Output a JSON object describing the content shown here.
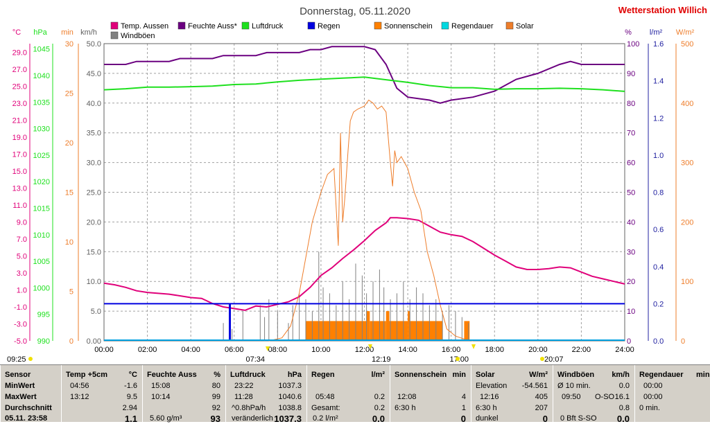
{
  "chart_data": {
    "type": "line",
    "title": "Donnerstag, 05.11.2020",
    "brand": "Wetterstation Willich",
    "legend": [
      {
        "label": "Temp. Aussen",
        "color": "#e0007a"
      },
      {
        "label": "Feuchte Auss*",
        "color": "#6b0080"
      },
      {
        "label": "Luftdruck",
        "color": "#1ee01e"
      },
      {
        "label": "Regen",
        "color": "#0000e0"
      },
      {
        "label": "Sonnenschein",
        "color": "#ff8000"
      },
      {
        "label": "Regendauer",
        "color": "#00d8e0"
      },
      {
        "label": "Solar",
        "color": "#ee7d2a"
      },
      {
        "label": "Windböen",
        "color": "#808080"
      }
    ],
    "axes": {
      "temp": {
        "unit": "°C",
        "color": "#e0007a",
        "min": -5,
        "max": 30,
        "ticks": [
          "29.0",
          "27.0",
          "25.0",
          "23.0",
          "21.0",
          "19.0",
          "17.0",
          "15.0",
          "13.0",
          "11.0",
          "9.0",
          "7.0",
          "5.0",
          "3.0",
          "1.0",
          "-1.0",
          "-3.0",
          "-5.0"
        ]
      },
      "hpa": {
        "unit": "hPa",
        "color": "#1ee01e",
        "min": 990,
        "max": 1046,
        "ticks": [
          "1045",
          "1040",
          "1035",
          "1030",
          "1025",
          "1020",
          "1015",
          "1010",
          "1005",
          "1000",
          "995",
          "990"
        ]
      },
      "min": {
        "unit": "min",
        "color": "#ee7d2a",
        "ticks": [
          "30",
          "25",
          "20",
          "15",
          "10",
          "5",
          "0"
        ]
      },
      "kmh": {
        "unit": "km/h",
        "color": "#606060",
        "min": 0,
        "max": 50,
        "ticks": [
          "50.0",
          "45.0",
          "40.0",
          "35.0",
          "30.0",
          "25.0",
          "20.0",
          "15.0",
          "10.0",
          "5.0",
          "0.00"
        ]
      },
      "pct": {
        "unit": "%",
        "color": "#6b0080",
        "min": 0,
        "max": 100,
        "ticks": [
          "100",
          "90",
          "80",
          "70",
          "60",
          "50",
          "40",
          "30",
          "20",
          "10",
          "0"
        ]
      },
      "lm2": {
        "unit": "l/m²",
        "color": "#2020a0",
        "min": 0,
        "max": 1.6,
        "ticks": [
          "1.6",
          "1.4",
          "1.2",
          "1.0",
          "0.8",
          "0.6",
          "0.4",
          "0.2",
          "0.0"
        ]
      },
      "wm2": {
        "unit": "W/m²",
        "color": "#ee7d2a",
        "min": 0,
        "max": 500,
        "ticks": [
          "500",
          "400",
          "300",
          "200",
          "100",
          "0"
        ]
      },
      "x_ticks": [
        "00:00",
        "02:00",
        "04:00",
        "06:00",
        "08:00",
        "10:00",
        "12:00",
        "14:00",
        "16:00",
        "18:00",
        "20:00",
        "22:00",
        "24:00"
      ]
    },
    "series": [
      {
        "name": "Temp. Aussen",
        "axis": "temp",
        "color": "#e0007a",
        "x": [
          0,
          0.5,
          1,
          1.5,
          2,
          2.5,
          3,
          3.5,
          4,
          4.5,
          5,
          5.5,
          6,
          6.5,
          7,
          7.5,
          8,
          8.5,
          9,
          9.5,
          10,
          10.5,
          11,
          11.5,
          12,
          12.5,
          13,
          13.2,
          13.5,
          14,
          14.5,
          15,
          15.5,
          16,
          16.5,
          17,
          17.5,
          18,
          18.5,
          19,
          19.5,
          20,
          20.5,
          21,
          21.5,
          22,
          22.5,
          23,
          23.5,
          24
        ],
        "y": [
          1.8,
          1.6,
          1.3,
          0.9,
          0.7,
          0.6,
          0.5,
          0.3,
          0.1,
          0.0,
          -0.6,
          -1.0,
          -1.2,
          -1.4,
          -0.9,
          -1.0,
          -0.7,
          -0.4,
          0.2,
          1.3,
          2.7,
          3.6,
          4.7,
          5.7,
          6.8,
          8.0,
          8.9,
          9.5,
          9.5,
          9.4,
          9.2,
          8.5,
          7.8,
          7.5,
          7.3,
          6.7,
          5.9,
          5.1,
          4.4,
          3.7,
          3.4,
          3.4,
          3.5,
          3.7,
          3.6,
          3.1,
          2.6,
          2.3,
          2.0,
          1.7
        ]
      },
      {
        "name": "Feuchte Auss*",
        "axis": "pct",
        "color": "#6b0080",
        "x": [
          0,
          1,
          1.5,
          3,
          3.5,
          5,
          5.5,
          7,
          7.5,
          9,
          9.5,
          10,
          10.5,
          11,
          12,
          12.5,
          13,
          13.5,
          14,
          15,
          15.5,
          16,
          17,
          18,
          19,
          20,
          21,
          21.5,
          22,
          23,
          24
        ],
        "y": [
          93,
          93,
          94,
          94,
          95,
          95,
          96,
          96,
          97,
          97,
          98,
          98,
          99,
          99,
          99,
          98,
          93,
          85,
          82,
          81,
          80,
          81,
          82,
          84,
          88,
          90,
          93,
          94,
          93,
          93,
          93
        ]
      },
      {
        "name": "Luftdruck",
        "axis": "hpa",
        "color": "#1ee01e",
        "x": [
          0,
          1,
          2,
          3,
          4,
          5,
          6,
          7,
          8,
          9,
          10,
          11,
          12,
          13,
          14,
          15,
          16,
          17,
          18,
          19,
          20,
          21,
          22,
          23,
          24
        ],
        "y": [
          1037.3,
          1037.5,
          1037.8,
          1037.8,
          1037.9,
          1038.0,
          1038.3,
          1038.4,
          1038.8,
          1039.1,
          1039.3,
          1039.5,
          1039.7,
          1039.2,
          1038.7,
          1038.1,
          1037.7,
          1037.7,
          1037.4,
          1037.5,
          1037.5,
          1037.6,
          1037.5,
          1037.3,
          1037.0
        ]
      },
      {
        "name": "Solar",
        "axis": "wm2",
        "color": "#ee7d2a",
        "x": [
          7.6,
          8.2,
          8.6,
          9,
          9.3,
          9.6,
          10,
          10.3,
          10.6,
          10.8,
          10.9,
          11.0,
          11.1,
          11.25,
          11.35,
          11.5,
          11.7,
          12,
          12.2,
          12.4,
          12.6,
          12.8,
          13,
          13.2,
          13.3,
          13.4,
          13.5,
          13.7,
          14,
          14.3,
          14.6,
          14.9,
          15.2,
          15.5,
          15.8,
          16.2,
          16.6,
          17.0
        ],
        "y": [
          0,
          5,
          25,
          80,
          140,
          200,
          250,
          280,
          290,
          160,
          350,
          200,
          240,
          320,
          370,
          385,
          390,
          395,
          405,
          400,
          390,
          395,
          385,
          300,
          260,
          320,
          300,
          310,
          290,
          250,
          220,
          150,
          110,
          60,
          20,
          8,
          3,
          0
        ]
      },
      {
        "name": "Regen",
        "axis": "lm2",
        "color": "#0000e0",
        "x": [
          0,
          5.9,
          5.9,
          24
        ],
        "y": [
          0.2,
          0.2,
          0.2,
          0.2
        ]
      }
    ],
    "gusts": {
      "axis": "kmh",
      "color": "#808080",
      "x": [
        5.5,
        5.9,
        6.4,
        7.2,
        7.4,
        7.6,
        8.0,
        8.5,
        8.7,
        9.0,
        9.3,
        9.6,
        9.9,
        10.1,
        10.4,
        10.7,
        11.0,
        11.3,
        11.6,
        11.9,
        12.1,
        12.4,
        12.7,
        12.9,
        13.2,
        13.5,
        13.8,
        14.1,
        14.4,
        14.7,
        15.0,
        15.3,
        15.6,
        15.9,
        16.2,
        16.5,
        16.8
      ],
      "y": [
        3,
        2,
        5,
        6,
        4,
        7,
        5,
        3,
        6,
        8,
        7,
        5,
        15,
        9,
        8,
        6,
        10,
        7,
        13,
        11,
        8,
        10,
        12,
        9,
        7,
        8,
        10,
        7,
        9,
        8,
        6,
        7,
        5,
        6,
        5,
        4,
        3
      ]
    },
    "sunshine": {
      "axis": "min",
      "color": "#ff8000",
      "blocks": [
        [
          9.3,
          12.1,
          2
        ],
        [
          12.1,
          12.25,
          3
        ],
        [
          12.25,
          13.0,
          2
        ],
        [
          13.0,
          13.15,
          3
        ],
        [
          13.15,
          14.0,
          2
        ],
        [
          14.0,
          14.1,
          3
        ],
        [
          14.1,
          15.6,
          2
        ],
        [
          16.6,
          16.85,
          2
        ]
      ]
    },
    "markers": {
      "sunrise": "07:34",
      "noon": "12:19",
      "sunset": "17:00",
      "moon": "20:07",
      "start": "09:25"
    }
  },
  "table": {
    "sensor": {
      "h1": "Sensor",
      "r1": "MinWert",
      "r2": "MaxWert",
      "r3": "Durchschnitt",
      "r4": "05.11. 23:58"
    },
    "temp": {
      "h": "Temp +5cm",
      "u": "°C",
      "t1": "04:56",
      "v1": "-1.6",
      "t2": "13:12",
      "v2": "9.5",
      "v3": "2.94",
      "v4": "1.1"
    },
    "feuchte": {
      "h": "Feuchte Auss",
      "u": "%",
      "t1": "15:08",
      "v1": "80",
      "t2": "10:14",
      "v2": "99",
      "v3": "92",
      "t4": "5.60 g/m³",
      "v4": "93"
    },
    "luft": {
      "h": "Luftdruck",
      "u": "hPa",
      "t1": "23:22",
      "v1": "1037.3",
      "t2": "11:28",
      "v2": "1040.6",
      "t3": "^0.8hPa/h",
      "v3": "1038.8",
      "t4": "veränderlich",
      "v4": "1037.3"
    },
    "regen": {
      "h": "Regen",
      "u": "l/m²",
      "t2": "05:48",
      "v2": "0.2",
      "t3": "Gesamt:",
      "v3": "0.2",
      "t4": "0.2 l/m²",
      "v4": "0.0"
    },
    "sonne": {
      "h": "Sonnenschein",
      "u": "min",
      "t2": "12:08",
      "v2": "4",
      "t3": "6:30 h",
      "v3": "1",
      "v4": "0"
    },
    "solar": {
      "h": "Solar",
      "u": "W/m²",
      "t1": "Elevation",
      "v1": "-54.561",
      "t2": "12:16",
      "v2": "405",
      "t3": "6:30 h",
      "v3": "207",
      "t4": "dunkel",
      "v4": "0"
    },
    "wind": {
      "h": "Windböen",
      "u": "km/h",
      "t1": "Ø 10 min.",
      "v1": "0.0",
      "t2": "09:50",
      "m2": "O-SO",
      "v2": "16.1",
      "v3": "0.8",
      "t4": "0 Bft S-SO",
      "v4": "0.0"
    },
    "regendauer": {
      "h": "Regendauer",
      "u": "min",
      "t1": "00:00",
      "t2": "00:00",
      "t3": "0 min."
    }
  }
}
